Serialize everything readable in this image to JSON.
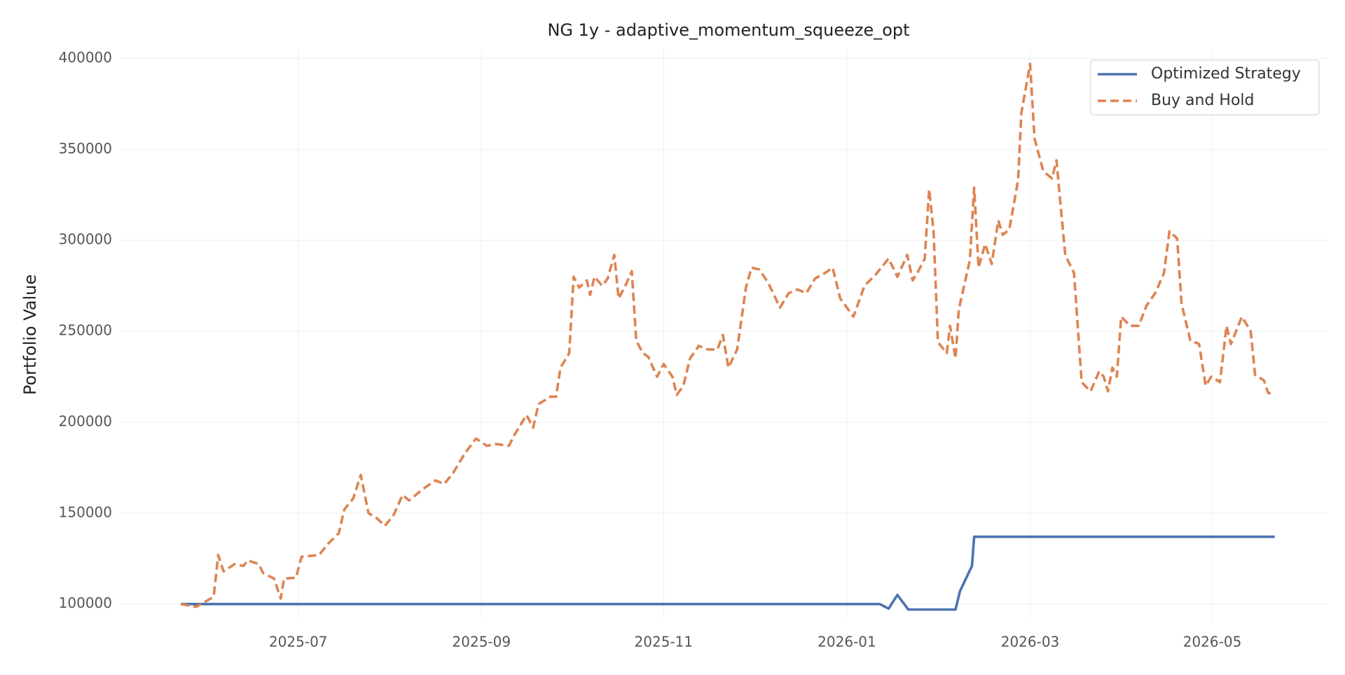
{
  "chart_data": {
    "type": "line",
    "title": "NG 1y - adaptive_momentum_squeeze_opt",
    "ylabel": "Portfolio Value",
    "xlim": [
      2025.338,
      2026.438
    ],
    "xticks": [
      {
        "value": 2025.5,
        "label": "2025-07"
      },
      {
        "value": 2025.667,
        "label": "2025-09"
      },
      {
        "value": 2025.833,
        "label": "2025-11"
      },
      {
        "value": 2026.0,
        "label": "2026-01"
      },
      {
        "value": 2026.167,
        "label": "2026-03"
      },
      {
        "value": 2026.333,
        "label": "2026-05"
      }
    ],
    "ylim": [
      91800,
      405200
    ],
    "yticks": [
      100000,
      150000,
      200000,
      250000,
      300000,
      350000,
      400000
    ],
    "grid": true,
    "legend": "upper right",
    "series": [
      {
        "name": "Optimized Strategy",
        "color": "#4c72b0",
        "dash": false,
        "x": [
          2025.393,
          2026.03,
          2026.038,
          2026.046,
          2026.056,
          2026.099,
          2026.103,
          2026.114,
          2026.116,
          2026.39
        ],
        "values": [
          100000,
          100000,
          97500,
          105000,
          97000,
          97000,
          107000,
          121000,
          137000,
          137000
        ]
      },
      {
        "name": "Buy and Hold",
        "color": "#dd8452",
        "dash": true,
        "x": [
          2025.393,
          2025.407,
          2025.423,
          2025.427,
          2025.432,
          2025.442,
          2025.45,
          2025.454,
          2025.464,
          2025.468,
          2025.478,
          2025.484,
          2025.487,
          2025.498,
          2025.503,
          2025.519,
          2025.527,
          2025.537,
          2025.542,
          2025.55,
          2025.557,
          2025.564,
          2025.572,
          2025.579,
          2025.587,
          2025.595,
          2025.601,
          2025.613,
          2025.625,
          2025.633,
          2025.641,
          2025.652,
          2025.662,
          2025.672,
          2025.68,
          2025.692,
          2025.697,
          2025.708,
          2025.714,
          2025.719,
          2025.73,
          2025.735,
          2025.739,
          2025.747,
          2025.751,
          2025.756,
          2025.763,
          2025.766,
          2025.77,
          2025.777,
          2025.782,
          2025.788,
          2025.792,
          2025.798,
          2025.804,
          2025.808,
          2025.814,
          2025.819,
          2025.827,
          2025.833,
          2025.841,
          2025.845,
          2025.851,
          2025.857,
          2025.865,
          2025.873,
          2025.882,
          2025.887,
          2025.892,
          2025.9,
          2025.908,
          2025.913,
          2025.92,
          2025.928,
          2025.939,
          2025.947,
          2025.955,
          2025.963,
          2025.971,
          2025.98,
          2025.987,
          2025.994,
          2026.006,
          2026.016,
          2026.026,
          2026.038,
          2026.046,
          2026.055,
          2026.06,
          2026.065,
          2026.071,
          2026.075,
          2026.079,
          2026.083,
          2026.091,
          2026.094,
          2026.099,
          2026.102,
          2026.112,
          2026.116,
          2026.12,
          2026.126,
          2026.132,
          2026.138,
          2026.142,
          2026.148,
          2026.156,
          2026.159,
          2026.167,
          2026.171,
          2026.179,
          2026.187,
          2026.191,
          2026.199,
          2026.207,
          2026.214,
          2026.222,
          2026.23,
          2026.234,
          2026.238,
          2026.242,
          2026.246,
          2026.25,
          2026.258,
          2026.266,
          2026.273,
          2026.281,
          2026.289,
          2026.294,
          2026.301,
          2026.305,
          2026.313,
          2026.321,
          2026.327,
          2026.332,
          2026.34,
          2026.346,
          2026.35,
          2026.36,
          2026.368,
          2026.372,
          2026.38,
          2026.384,
          2026.39
        ],
        "values": [
          100000,
          98500,
          104000,
          127000,
          118000,
          122000,
          121000,
          124000,
          122000,
          117000,
          114000,
          103000,
          114000,
          114500,
          126000,
          127000,
          133000,
          139000,
          152000,
          158000,
          171000,
          150000,
          147000,
          143000,
          149000,
          160000,
          157000,
          163000,
          168000,
          166000,
          172000,
          183000,
          191000,
          187000,
          188000,
          187000,
          193000,
          204000,
          197000,
          210000,
          214000,
          214000,
          230000,
          238000,
          280000,
          274000,
          278000,
          270000,
          280000,
          275000,
          279000,
          292000,
          268000,
          275000,
          283000,
          245000,
          238000,
          236000,
          225000,
          232000,
          225000,
          215000,
          220000,
          235000,
          242000,
          240000,
          240000,
          248000,
          230000,
          240000,
          274000,
          285000,
          284000,
          277000,
          263000,
          271000,
          273000,
          271000,
          279000,
          282000,
          285000,
          268000,
          258000,
          275000,
          281000,
          290000,
          280000,
          292000,
          278000,
          283000,
          290000,
          328000,
          305000,
          244000,
          238000,
          253000,
          235000,
          262000,
          289000,
          329000,
          285000,
          298000,
          287000,
          311000,
          303000,
          306000,
          333000,
          370000,
          397000,
          356000,
          338000,
          334000,
          344000,
          292000,
          282000,
          222000,
          217000,
          228000,
          225000,
          217000,
          230000,
          225000,
          258000,
          253000,
          253000,
          264000,
          271000,
          282000,
          305000,
          301000,
          265000,
          245000,
          243000,
          220000,
          225000,
          222000,
          253000,
          243000,
          258000,
          250000,
          226000,
          223000,
          216000,
          216000
        ]
      }
    ]
  }
}
